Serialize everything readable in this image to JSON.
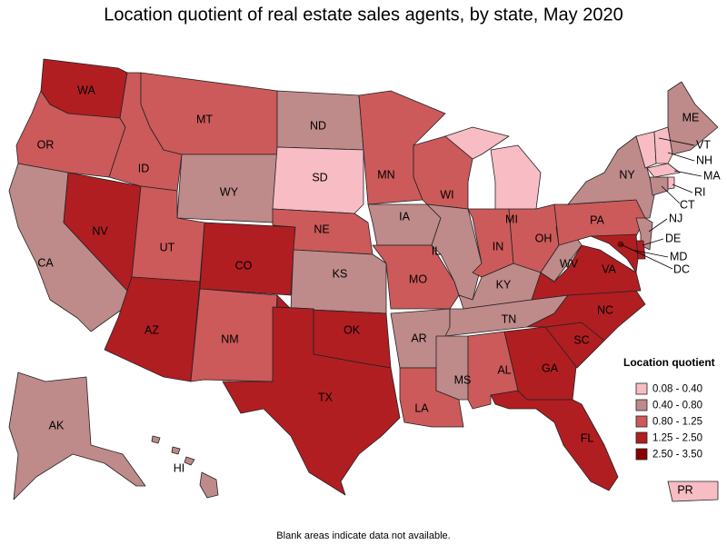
{
  "title": "Location quotient of real estate sales agents, by state, May 2020",
  "legend": {
    "title": "Location quotient",
    "bins": [
      {
        "label": "0.08 - 0.40",
        "color": "#f8bcc4"
      },
      {
        "label": "0.40 - 0.80",
        "color": "#bf8a8a"
      },
      {
        "label": "0.80 - 1.25",
        "color": "#cc5a5a"
      },
      {
        "label": "1.25 - 2.50",
        "color": "#b01e22"
      },
      {
        "label": "2.50 - 3.50",
        "color": "#8b0000"
      }
    ]
  },
  "states": [
    {
      "label": "WA",
      "color": "#b01e22"
    },
    {
      "label": "OR",
      "color": "#cc5a5a"
    },
    {
      "label": "CA",
      "color": "#bf8a8a"
    },
    {
      "label": "NV",
      "color": "#b01e22"
    },
    {
      "label": "ID",
      "color": "#cc5a5a"
    },
    {
      "label": "MT",
      "color": "#cc5a5a"
    },
    {
      "label": "WY",
      "color": "#bf8a8a"
    },
    {
      "label": "UT",
      "color": "#cc5a5a"
    },
    {
      "label": "AZ",
      "color": "#b01e22"
    },
    {
      "label": "CO",
      "color": "#b01e22"
    },
    {
      "label": "NM",
      "color": "#cc5a5a"
    },
    {
      "label": "ND",
      "color": "#bf8a8a"
    },
    {
      "label": "SD",
      "color": "#f8bcc4"
    },
    {
      "label": "NE",
      "color": "#cc5a5a"
    },
    {
      "label": "KS",
      "color": "#bf8a8a"
    },
    {
      "label": "OK",
      "color": "#b01e22"
    },
    {
      "label": "TX",
      "color": "#b01e22"
    },
    {
      "label": "MN",
      "color": "#cc5a5a"
    },
    {
      "label": "IA",
      "color": "#bf8a8a"
    },
    {
      "label": "MO",
      "color": "#cc5a5a"
    },
    {
      "label": "AR",
      "color": "#bf8a8a"
    },
    {
      "label": "LA",
      "color": "#cc5a5a"
    },
    {
      "label": "WI",
      "color": "#cc5a5a"
    },
    {
      "label": "IL",
      "color": "#bf8a8a"
    },
    {
      "label": "MI",
      "color": "#f8bcc4"
    },
    {
      "label": "IN",
      "color": "#cc5a5a"
    },
    {
      "label": "OH",
      "color": "#cc5a5a"
    },
    {
      "label": "KY",
      "color": "#bf8a8a"
    },
    {
      "label": "TN",
      "color": "#bf8a8a"
    },
    {
      "label": "MS",
      "color": "#bf8a8a"
    },
    {
      "label": "AL",
      "color": "#cc5a5a"
    },
    {
      "label": "GA",
      "color": "#b01e22"
    },
    {
      "label": "FL",
      "color": "#b01e22"
    },
    {
      "label": "SC",
      "color": "#b01e22"
    },
    {
      "label": "NC",
      "color": "#b01e22"
    },
    {
      "label": "VA",
      "color": "#b01e22"
    },
    {
      "label": "WV",
      "color": "#bf8a8a"
    },
    {
      "label": "PA",
      "color": "#cc5a5a"
    },
    {
      "label": "NY",
      "color": "#bf8a8a"
    },
    {
      "label": "ME",
      "color": "#bf8a8a"
    },
    {
      "label": "VT",
      "color": "#f8bcc4"
    },
    {
      "label": "NH",
      "color": "#f8bcc4"
    },
    {
      "label": "MA",
      "color": "#f8bcc4"
    },
    {
      "label": "CT",
      "color": "#bf8a8a"
    },
    {
      "label": "RI",
      "color": "#f8bcc4"
    },
    {
      "label": "NJ",
      "color": "#bf8a8a"
    },
    {
      "label": "DE",
      "color": "#b01e22"
    },
    {
      "label": "MD",
      "color": "#b01e22"
    },
    {
      "label": "DC",
      "color": "#8b0000"
    },
    {
      "label": "AK",
      "color": "#bf8a8a"
    },
    {
      "label": "HI",
      "color": "#bf8a8a"
    },
    {
      "label": "PR",
      "color": "#f8bcc4"
    }
  ],
  "footnote": "Blank areas indicate data not available."
}
